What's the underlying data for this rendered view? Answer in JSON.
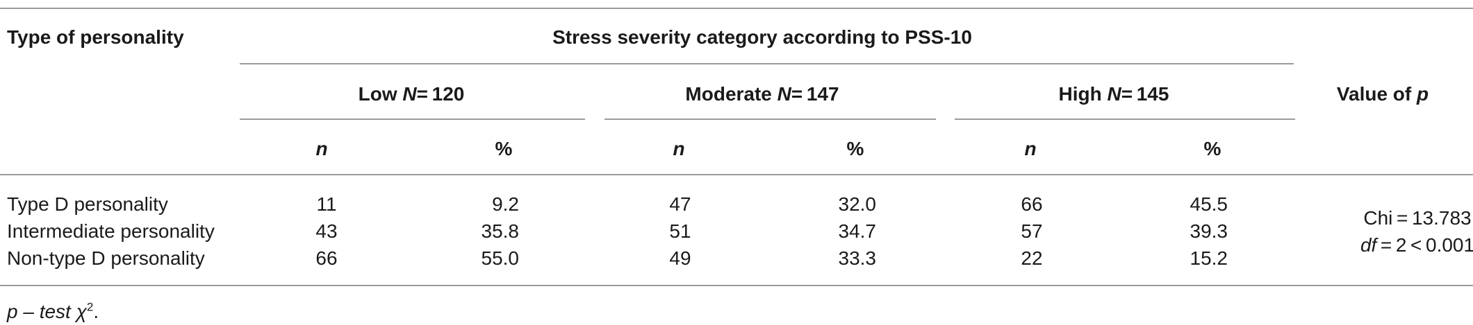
{
  "header": {
    "col_type": "Type of personality",
    "group_title": "Stress severity category according to PSS-10",
    "low_prefix": "Low",
    "low_n": "= 120",
    "moderate_prefix": "Moderate",
    "moderate_n": "= 147",
    "high_prefix": "High",
    "high_n": "= 145",
    "n_symbol": "N",
    "value_label": "Value of",
    "p_symbol": "p",
    "sub_n": "n",
    "sub_pct": "%"
  },
  "rows": [
    {
      "label": "Type D personality",
      "low_n": "11",
      "low_pct": "9.2",
      "mod_n": "47",
      "mod_pct": "32.0",
      "high_n": "66",
      "high_pct": "45.5"
    },
    {
      "label": "Intermediate personality",
      "low_n": "43",
      "low_pct": "35.8",
      "mod_n": "51",
      "mod_pct": "34.7",
      "high_n": "57",
      "high_pct": "39.3"
    },
    {
      "label": "Non-type D personality",
      "low_n": "66",
      "low_pct": "55.0",
      "mod_n": "49",
      "mod_pct": "33.3",
      "high_n": "22",
      "high_pct": "15.2"
    }
  ],
  "stat": {
    "chi": "Chi = 13.783",
    "df_label": "df",
    "df_value": " = 2 < 0.001"
  },
  "footnote": {
    "text": "p – test χ",
    "sup": "2",
    "end": "."
  }
}
